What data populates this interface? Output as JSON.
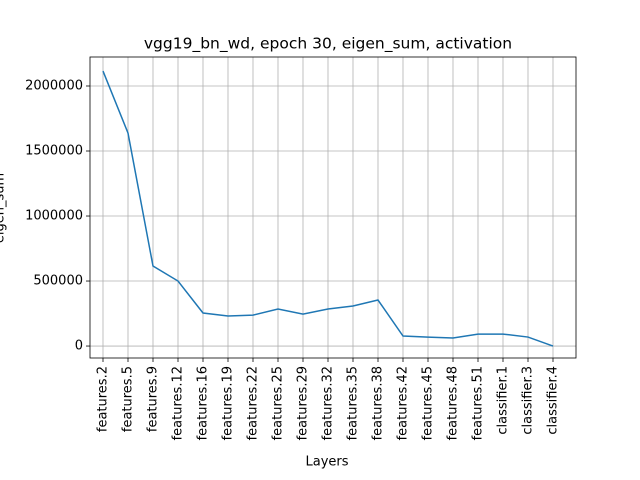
{
  "chart_data": {
    "type": "line",
    "title": "vgg19_bn_wd, epoch 30, eigen_sum, activation",
    "xlabel": "Layers",
    "ylabel": "eigen_sum",
    "categories": [
      "features.2",
      "features.5",
      "features.9",
      "features.12",
      "features.16",
      "features.19",
      "features.22",
      "features.25",
      "features.29",
      "features.32",
      "features.35",
      "features.38",
      "features.42",
      "features.45",
      "features.48",
      "features.51",
      "classifier.1",
      "classifier.3",
      "classifier.4"
    ],
    "series": [
      {
        "name": "eigen_sum",
        "color": "#1f77b4",
        "values": [
          2115000,
          1638000,
          615000,
          500000,
          254000,
          231000,
          238000,
          285000,
          246000,
          285000,
          308000,
          354000,
          77000,
          69000,
          62000,
          92000,
          92000,
          69000,
          0
        ]
      }
    ],
    "ylim": [
      -92000,
      2223000
    ],
    "yticks": [
      0,
      500000,
      1000000,
      1500000,
      2000000
    ],
    "grid": true
  }
}
